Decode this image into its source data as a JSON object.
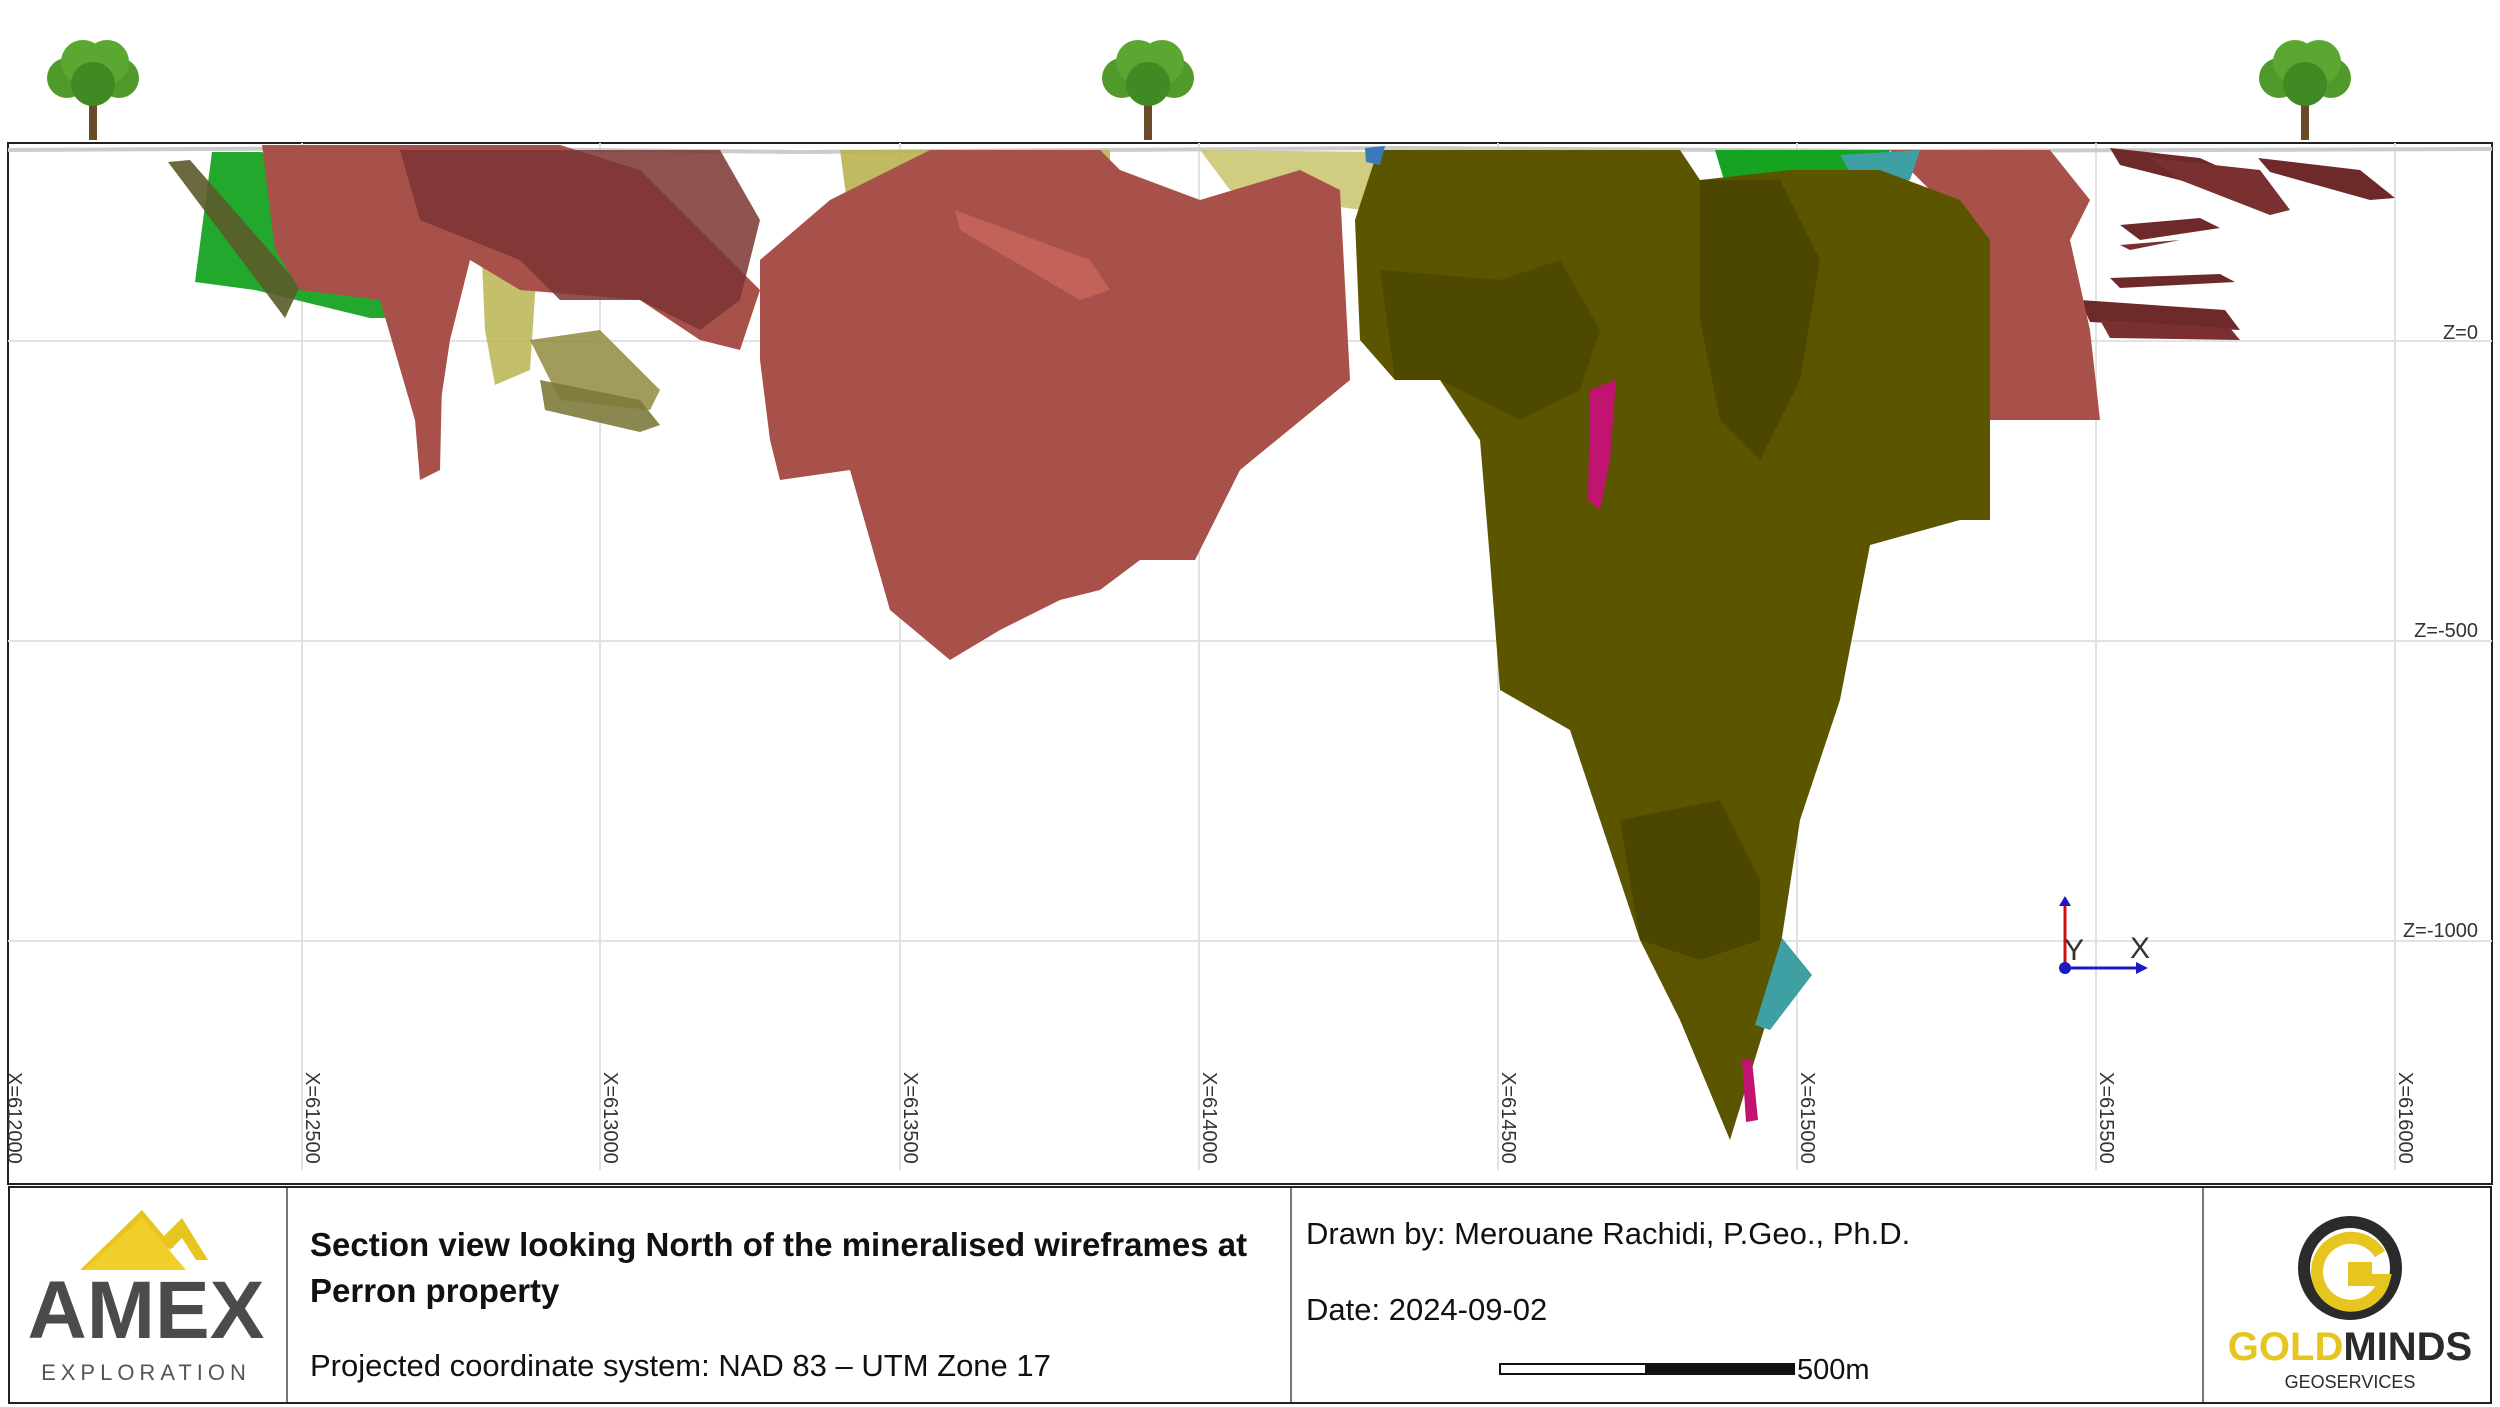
{
  "section": {
    "x_ticks": [
      "X=612000",
      "X=612500",
      "X=613000",
      "X=613500",
      "X=614000",
      "X=614500",
      "X=615000",
      "X=615500",
      "X=616000"
    ],
    "z_ticks": [
      "Z=0",
      "Z=-500",
      "Z=-1000"
    ],
    "axis_y_label": "Y",
    "axis_x_label": "X"
  },
  "title_block": {
    "title": "Section view looking North of the mineralised wireframes at Perron property",
    "coordinate_system": "Projected coordinate system: NAD 83 – UTM Zone 17",
    "drawn_by": "Drawn by: Merouane Rachidi,  P.Geo., Ph.D.",
    "date": "Date: 2024-09-02",
    "scale_label": "500m"
  },
  "logos": {
    "amex_name": "AMEX",
    "amex_sub": "EXPLORATION",
    "goldminds_gold": "GOLD",
    "goldminds_minds": "MINDS",
    "goldminds_sub": "GEOSERVICES"
  },
  "colors": {
    "olive": "#5b5500",
    "rose": "#a8504a",
    "dark_rose": "#6e2a2a",
    "khaki": "#b9b451",
    "green": "#16a322",
    "teal": "#3fa0a4",
    "magenta": "#c01470",
    "gold": "#e7c51f"
  }
}
